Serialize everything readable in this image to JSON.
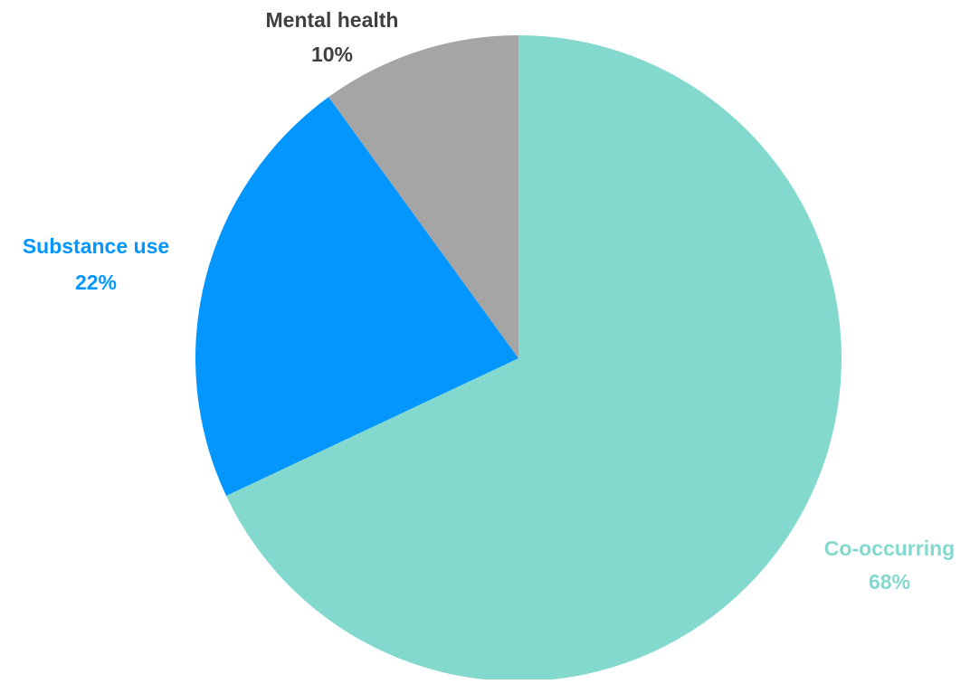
{
  "chart_data": {
    "type": "pie",
    "start_angle_deg": 0,
    "direction": "clockwise",
    "slices": [
      {
        "label": "Co-occurring",
        "value": 68,
        "value_label": "68%",
        "color": "#84D9CF"
      },
      {
        "label": "Substance use",
        "value": 22,
        "value_label": "22%",
        "color": "#0296FE"
      },
      {
        "label": "Mental health",
        "value": 10,
        "value_label": "10%",
        "color": "#A5A5A5"
      }
    ],
    "label_colors": [
      "#84D9CF",
      "#0296FE",
      "#404040"
    ],
    "legend": "none"
  }
}
